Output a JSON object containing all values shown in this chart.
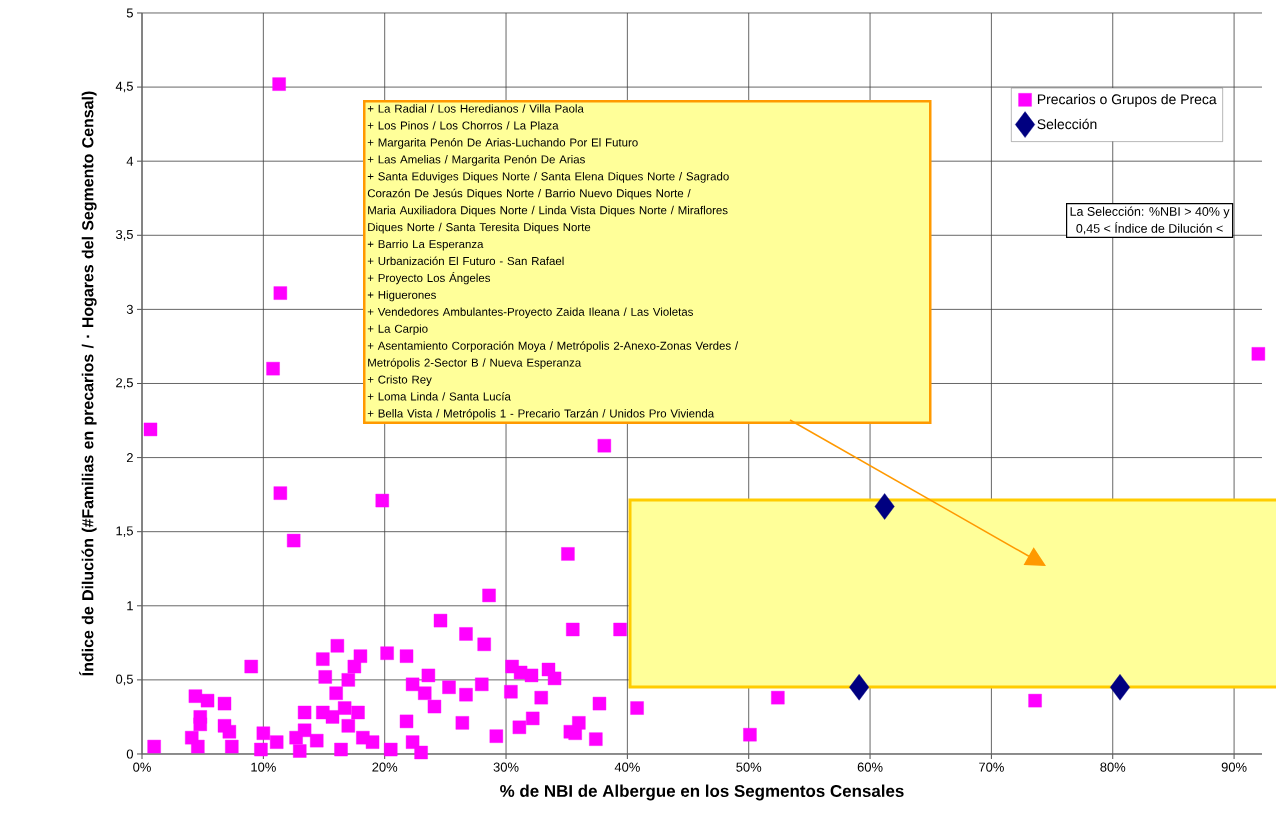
{
  "chart_data": {
    "type": "scatter",
    "xlabel": "% de NBI de Albergue en los Segmentos Censales",
    "ylabel": "Índice de Dilución (#Familias en precarios / · Hogares del Segmento Censal)",
    "xlim": [
      0,
      92.3
    ],
    "ylim": [
      0,
      5
    ],
    "xticks": [
      {
        "value": 0,
        "label": "0%"
      },
      {
        "value": 10,
        "label": "10%"
      },
      {
        "value": 20,
        "label": "20%"
      },
      {
        "value": 30,
        "label": "30%"
      },
      {
        "value": 40,
        "label": "40%"
      },
      {
        "value": 50,
        "label": "50%"
      },
      {
        "value": 60,
        "label": "60%"
      },
      {
        "value": 70,
        "label": "70%"
      },
      {
        "value": 80,
        "label": "80%"
      },
      {
        "value": 90,
        "label": "90%"
      }
    ],
    "yticks": [
      0,
      {
        "value": 0.5,
        "label": "0,5"
      },
      1,
      {
        "value": 1.5,
        "label": "1,5"
      },
      2,
      {
        "value": 2.5,
        "label": "2,5"
      },
      3,
      {
        "value": 3.5,
        "label": "3,5"
      },
      4,
      {
        "value": 4.5,
        "label": "4,5"
      },
      5
    ],
    "grid": true,
    "legend": "top right",
    "series": [
      {
        "name": "Precarios o Grupos de Preca",
        "color": "#ff00ff",
        "marker": "square",
        "x": [
          11.3,
          11.4,
          10.8,
          0.7,
          11.4,
          12.5,
          19.8,
          38.1,
          35.1,
          28.6,
          24.6,
          35.5,
          39.4,
          9.0,
          16.1,
          26.7,
          28.2,
          20.2,
          21.8,
          18.0,
          17.5,
          14.9,
          15.1,
          17.0,
          16.0,
          23.6,
          22.3,
          23.3,
          24.1,
          25.3,
          26.7,
          28.0,
          30.5,
          31.2,
          32.1,
          33.5,
          34.0,
          30.4,
          32.9,
          37.7,
          40.8,
          21.8,
          26.4,
          32.2,
          31.1,
          29.2,
          35.3,
          36.0,
          35.7,
          37.4,
          22.3,
          23.0,
          1.0,
          4.4,
          5.4,
          6.8,
          4.8,
          4.8,
          4.1,
          4.6,
          6.8,
          7.2,
          7.4,
          10.0,
          9.8,
          11.1,
          12.7,
          13.0,
          13.4,
          13.4,
          14.4,
          14.9,
          15.7,
          16.7,
          17.8,
          17.0,
          16.4,
          18.2,
          19.0,
          20.5,
          50.1,
          52.4,
          73.6,
          92.0
        ],
        "values": [
          4.52,
          3.11,
          2.6,
          2.19,
          1.76,
          1.44,
          1.71,
          2.08,
          1.35,
          1.07,
          0.9,
          0.84,
          0.84,
          0.59,
          0.73,
          0.81,
          0.74,
          0.68,
          0.66,
          0.66,
          0.59,
          0.64,
          0.52,
          0.5,
          0.41,
          0.53,
          0.47,
          0.41,
          0.32,
          0.45,
          0.4,
          0.47,
          0.59,
          0.55,
          0.53,
          0.57,
          0.51,
          0.42,
          0.38,
          0.34,
          0.31,
          0.22,
          0.21,
          0.24,
          0.18,
          0.12,
          0.15,
          0.21,
          0.14,
          0.1,
          0.08,
          0.01,
          0.05,
          0.39,
          0.36,
          0.34,
          0.25,
          0.2,
          0.11,
          0.05,
          0.19,
          0.15,
          0.05,
          0.14,
          0.03,
          0.08,
          0.11,
          0.02,
          0.28,
          0.16,
          0.09,
          0.28,
          0.25,
          0.31,
          0.28,
          0.19,
          0.03,
          0.11,
          0.08,
          0.03,
          0.13,
          0.38,
          0.36,
          2.7
        ]
      },
      {
        "name": "Selección",
        "color": "#000080",
        "marker": "diamond",
        "x": [
          61.2,
          59.1,
          80.6
        ],
        "values": [
          1.67,
          0.45,
          0.45
        ]
      }
    ],
    "annotations": [
      "+ La Radial / Los Heredianos / Villa Paola",
      "+ Los Pinos / Los Chorros / La Plaza",
      "+ Margarita Penón De Arias-Luchando Por El Futuro",
      "+ Las Amelias / Margarita Penón De Arias",
      "+ Santa Eduviges Diques Norte / Santa Elena Diques Norte / Sagrado",
      "Corazón De Jesús Diques Norte / Barrio Nuevo Diques Norte /",
      "Maria Auxiliadora Diques Norte / Linda Vista Diques Norte / Miraflores",
      "Diques Norte / Santa Teresita Diques Norte",
      "+ Barrio La Esperanza",
      "+ Urbanización El Futuro - San Rafael",
      "+ Proyecto Los Ángeles",
      "+ Higuerones",
      "+ Vendedores Ambulantes-Proyecto Zaida Ileana / Las Violetas",
      "+ La Carpio",
      "+ Asentamiento Corporación Moya / Metrópolis 2-Anexo-Zonas Verdes /",
      "Metrópolis 2-Sector B / Nueva Esperanza",
      "+ Cristo Rey",
      "+ Loma Linda / Santa Lucía",
      "+ Bella Vista / Metrópolis 1 - Precario Tarzán / Unidos Pro Vivienda",
      "La Selección: %NBI > 40% y",
      "0,45 < Índice de Dilución <"
    ]
  }
}
